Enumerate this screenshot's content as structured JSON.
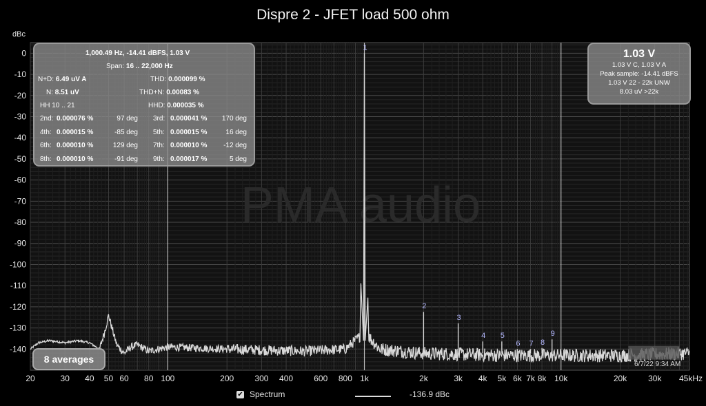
{
  "title": "Dispre 2 - JFET load 500 ohm",
  "chart_data": {
    "type": "line",
    "title": "Dispre 2 - JFET load 500 ohm",
    "ylabel": "dBc",
    "xlabel": "",
    "x_scale": "log",
    "xlim": [
      20,
      45000
    ],
    "ylim": [
      -150,
      5
    ],
    "yticks": [
      0,
      -10,
      -20,
      -30,
      -40,
      -50,
      -60,
      -70,
      -80,
      -90,
      -100,
      -110,
      -120,
      -130,
      -140
    ],
    "xticks": [
      20,
      30,
      40,
      50,
      60,
      80,
      100,
      200,
      300,
      400,
      600,
      800,
      1000,
      2000,
      3000,
      4000,
      5000,
      6000,
      7000,
      8000,
      10000,
      20000,
      30000,
      45000
    ],
    "xtick_labels": [
      "20",
      "30",
      "40",
      "50",
      "60",
      "80",
      "100",
      "200",
      "300",
      "400",
      "600",
      "800",
      "1k",
      "2k",
      "3k",
      "4k",
      "5k",
      "6k",
      "7k",
      "8k",
      "10k",
      "20k",
      "30k",
      "45kHz"
    ],
    "noise_floor": [
      [
        20,
        -140
      ],
      [
        22,
        -137
      ],
      [
        25,
        -136
      ],
      [
        30,
        -137
      ],
      [
        35,
        -136
      ],
      [
        40,
        -137
      ],
      [
        45,
        -140
      ],
      [
        48,
        -131
      ],
      [
        50,
        -124
      ],
      [
        52,
        -130
      ],
      [
        55,
        -138
      ],
      [
        60,
        -142
      ],
      [
        65,
        -139
      ],
      [
        70,
        -138
      ],
      [
        80,
        -141
      ],
      [
        100,
        -139
      ],
      [
        200,
        -140
      ],
      [
        500,
        -141
      ],
      [
        800,
        -140
      ],
      [
        950,
        -134
      ],
      [
        1000,
        0
      ],
      [
        1050,
        -134
      ],
      [
        1200,
        -140
      ],
      [
        2000,
        -142
      ],
      [
        5000,
        -143
      ],
      [
        10000,
        -143
      ],
      [
        20000,
        -143
      ],
      [
        45000,
        -142
      ]
    ],
    "harmonics": [
      {
        "label": "1",
        "freq": 1000,
        "level": 0
      },
      {
        "label": "2",
        "freq": 2000,
        "level": -122.4
      },
      {
        "label": "3",
        "freq": 3000,
        "level": -127.8
      },
      {
        "label": "4",
        "freq": 4000,
        "level": -136.4
      },
      {
        "label": "5",
        "freq": 5000,
        "level": -136.4
      },
      {
        "label": "6",
        "freq": 6000,
        "level": -140.0
      },
      {
        "label": "7",
        "freq": 7000,
        "level": -140.0
      },
      {
        "label": "8",
        "freq": 8000,
        "level": -139.5
      },
      {
        "label": "9",
        "freq": 9000,
        "level": -135.4
      }
    ],
    "grid": true,
    "legend": "bottom-center",
    "line_color": "#d8d8d8",
    "watermark": "PMA audio"
  },
  "distortion_panel": {
    "header": "1,000.49 Hz, -14.41 dBFS, 1.03 V",
    "span_label": "Span:",
    "span_value": "16 .. 22,000 Hz",
    "nd_label": "N+D:",
    "nd_value": "6.49 uV A",
    "thd_label": "THD:",
    "thd_value": "0.000099 %",
    "n_label": "N:",
    "n_value": "8.51 uV",
    "thdn_label": "THD+N:",
    "thdn_value": "0.00083 %",
    "hh_label": "HH 10 .. 21",
    "hhd_label": "HHD:",
    "hhd_value": "0.000035 %",
    "harmonic_rows": [
      {
        "l1": "2nd:",
        "v1": "0.000076 %",
        "d1": "97 deg",
        "l2": "3rd:",
        "v2": "0.000041 %",
        "d2": "170 deg"
      },
      {
        "l1": "4th:",
        "v1": "0.000015 %",
        "d1": "-85 deg",
        "l2": "5th:",
        "v2": "0.000015 %",
        "d2": "16 deg"
      },
      {
        "l1": "6th:",
        "v1": "0.000010 %",
        "d1": "129 deg",
        "l2": "7th:",
        "v2": "0.000010 %",
        "d2": "-12 deg"
      },
      {
        "l1": "8th:",
        "v1": "0.000010 %",
        "d1": "-91 deg",
        "l2": "9th:",
        "v2": "0.000017 %",
        "d2": "5 deg"
      }
    ]
  },
  "level_panel": {
    "main": "1.03 V",
    "line1": "1.03 V C, 1.03 V A",
    "line2": "Peak sample: -14.41 dBFS",
    "line3": "1.03 V 22 - 22k UNW",
    "line4": "8.03 uV >22k"
  },
  "averages": "8 averages",
  "timestamp": "6/7/22 9:34 AM",
  "legend": {
    "series_label": "Spectrum",
    "checked": true,
    "check_glyph": "✔",
    "value": "-136.9 dBc"
  }
}
